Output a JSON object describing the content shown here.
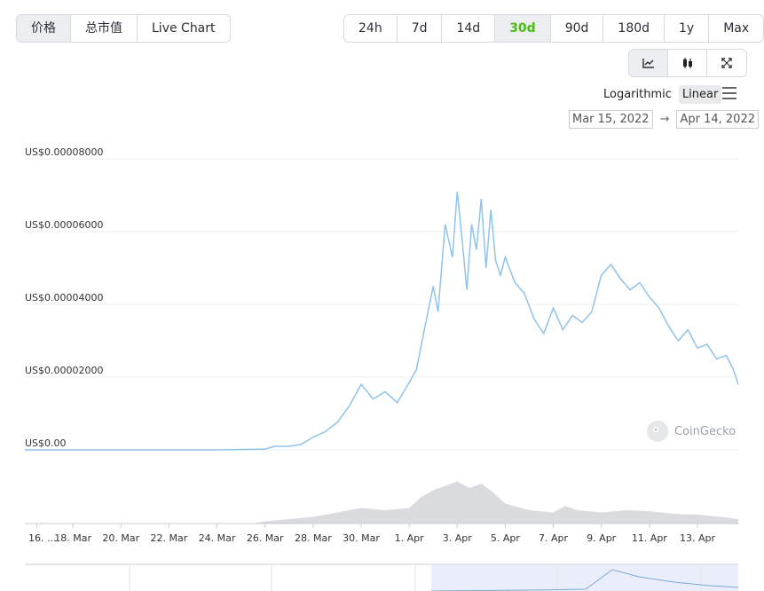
{
  "tabs": [
    {
      "label": "价格",
      "active": true
    },
    {
      "label": "总市值",
      "active": false
    },
    {
      "label": "Live Chart",
      "active": false
    }
  ],
  "ranges": [
    {
      "label": "24h",
      "active": false
    },
    {
      "label": "7d",
      "active": false
    },
    {
      "label": "14d",
      "active": false
    },
    {
      "label": "30d",
      "active": true
    },
    {
      "label": "90d",
      "active": false
    },
    {
      "label": "180d",
      "active": false
    },
    {
      "label": "1y",
      "active": false
    },
    {
      "label": "Max",
      "active": false
    }
  ],
  "tools": {
    "line_icon": "line-chart-icon",
    "candle_icon": "candlestick-icon",
    "expand_icon": "fullscreen-icon"
  },
  "scale": {
    "log_label": "Logarithmic",
    "linear_label": "Linear",
    "active": "Linear"
  },
  "date_range": {
    "from": "Mar 15, 2022",
    "to": "Apr 14, 2022",
    "arrow": "→"
  },
  "watermark": "CoinGecko",
  "colors": {
    "line": "#8fc3ec",
    "volume": "#d9dbdf",
    "accent": "#4cbb17",
    "navigator_fill": "#dbe3f7"
  },
  "chart_data": {
    "type": "line",
    "title": "",
    "xlabel": "",
    "ylabel": "",
    "ylim": [
      0,
      8e-05
    ],
    "y_ticks": [
      {
        "value": 0,
        "label": "US$0.00"
      },
      {
        "value": 2e-05,
        "label": "US$0.00002000"
      },
      {
        "value": 4e-05,
        "label": "US$0.00004000"
      },
      {
        "value": 6e-05,
        "label": "US$0.00006000"
      },
      {
        "value": 8e-05,
        "label": "US$0.00008000"
      }
    ],
    "x_ticks": [
      "16. ...",
      "18. Mar",
      "20. Mar",
      "22. Mar",
      "24. Mar",
      "26. Mar",
      "28. Mar",
      "30. Mar",
      "1. Apr",
      "3. Apr",
      "5. Apr",
      "7. Apr",
      "9. Apr",
      "11. Apr",
      "13. Apr"
    ],
    "x_tick_days": [
      0.5,
      2,
      4,
      6,
      8,
      10,
      12,
      14,
      16,
      18,
      20,
      22,
      24,
      26,
      28
    ],
    "x_range_days": [
      0,
      29.7
    ],
    "grid": true,
    "legend": "none",
    "series": [
      {
        "x_days": [
          0,
          4,
          8,
          10,
          10.4,
          11,
          11.5,
          12,
          12.5,
          13,
          13.5,
          14,
          14.5,
          15,
          15.5,
          16,
          16.3,
          16.6,
          17,
          17.2,
          17.5,
          17.8,
          18,
          18.2,
          18.4,
          18.6,
          18.8,
          19,
          19.2,
          19.4,
          19.6,
          19.8,
          20,
          20.4,
          20.8,
          21.2,
          21.6,
          22,
          22.4,
          22.8,
          23.2,
          23.6,
          24,
          24.4,
          24.8,
          25.2,
          25.6,
          26,
          26.4,
          26.8,
          27.2,
          27.6,
          28,
          28.4,
          28.8,
          29.2,
          29.5,
          29.7
        ],
        "values": [
          0,
          0,
          0,
          2e-07,
          1e-06,
          1e-06,
          1.5e-06,
          3.5e-06,
          5e-06,
          7.5e-06,
          1.2e-05,
          1.8e-05,
          1.4e-05,
          1.6e-05,
          1.3e-05,
          1.85e-05,
          2.2e-05,
          3.2e-05,
          4.5e-05,
          3.8e-05,
          6.2e-05,
          5.3e-05,
          7.1e-05,
          5.8e-05,
          4.4e-05,
          6.2e-05,
          5.5e-05,
          6.9e-05,
          5e-05,
          6.6e-05,
          5.2e-05,
          4.8e-05,
          5.3e-05,
          4.6e-05,
          4.3e-05,
          3.6e-05,
          3.2e-05,
          3.9e-05,
          3.3e-05,
          3.7e-05,
          3.5e-05,
          3.8e-05,
          4.8e-05,
          5.1e-05,
          4.7e-05,
          4.4e-05,
          4.6e-05,
          4.2e-05,
          3.9e-05,
          3.4e-05,
          3e-05,
          3.3e-05,
          2.8e-05,
          2.9e-05,
          2.5e-05,
          2.6e-05,
          2.2e-05,
          1.8e-05
        ]
      }
    ],
    "volume": {
      "x_days": [
        0,
        9.5,
        10,
        11,
        12,
        13,
        14,
        15,
        16,
        16.5,
        17,
        17.5,
        18,
        18.5,
        19,
        19.5,
        20,
        21,
        22,
        22.5,
        23,
        24,
        25,
        26,
        27,
        28,
        29,
        29.7
      ],
      "relative_values": [
        0,
        0,
        0.05,
        0.1,
        0.15,
        0.25,
        0.35,
        0.3,
        0.35,
        0.6,
        0.75,
        0.85,
        0.95,
        0.8,
        0.9,
        0.7,
        0.45,
        0.3,
        0.25,
        0.4,
        0.3,
        0.25,
        0.3,
        0.28,
        0.22,
        0.2,
        0.15,
        0.1
      ]
    }
  }
}
